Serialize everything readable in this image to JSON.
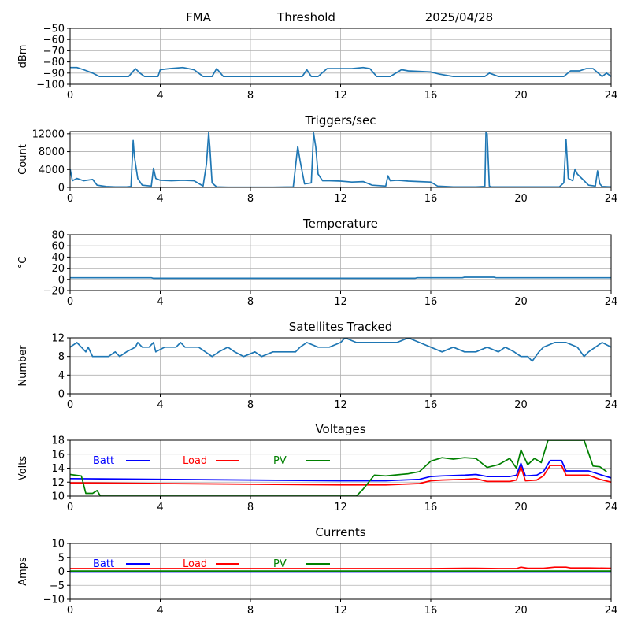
{
  "header": {
    "left": "FMA",
    "center": "Threshold",
    "right": "2025/04/28"
  },
  "chart_data": [
    {
      "id": "signal",
      "type": "line",
      "title": "",
      "xlabel": "",
      "ylabel": "dBm",
      "xlim": [
        0,
        24
      ],
      "ylim": [
        -100,
        -50
      ],
      "xticks": [
        0,
        4,
        8,
        12,
        16,
        20,
        24
      ],
      "yticks": [
        -100,
        -90,
        -80,
        -70,
        -60,
        -50
      ],
      "grid": true,
      "series": [
        {
          "color": "#1f77b4",
          "x": [
            0,
            0.3,
            0.6,
            1,
            1.3,
            2,
            2.6,
            2.9,
            3.1,
            3.3,
            3.6,
            3.9,
            4,
            4.4,
            5,
            5.5,
            5.9,
            6.3,
            6.5,
            6.8,
            7.2,
            8,
            9,
            10.3,
            10.5,
            10.7,
            11,
            11.4,
            12,
            12.5,
            13,
            13.3,
            13.6,
            14.2,
            14.7,
            15,
            16,
            16.4,
            17,
            18,
            18.4,
            18.6,
            19,
            20,
            21,
            21.9,
            22.2,
            22.6,
            22.9,
            23.2,
            23.6,
            23.8,
            24
          ],
          "y": [
            -85,
            -85,
            -87,
            -90,
            -93,
            -93,
            -93,
            -86,
            -90,
            -93,
            -93,
            -93,
            -87,
            -86,
            -85,
            -87,
            -93,
            -93,
            -86,
            -93,
            -93,
            -93,
            -93,
            -93,
            -87,
            -93,
            -93,
            -86,
            -86,
            -86,
            -85,
            -86,
            -93,
            -93,
            -87,
            -88,
            -89,
            -91,
            -93,
            -93,
            -93,
            -90,
            -93,
            -93,
            -93,
            -93,
            -88,
            -88,
            -86,
            -86,
            -93,
            -90,
            -93
          ]
        }
      ]
    },
    {
      "id": "triggers",
      "type": "line",
      "title": "Triggers/sec",
      "xlabel": "",
      "ylabel": "Count",
      "xlim": [
        0,
        24
      ],
      "ylim": [
        0,
        12500
      ],
      "xticks": [
        0,
        4,
        8,
        12,
        16,
        20,
        24
      ],
      "yticks": [
        0,
        4000,
        8000,
        12000
      ],
      "grid": true,
      "series": [
        {
          "color": "#1f77b4",
          "x": [
            0,
            0.1,
            0.3,
            0.6,
            1,
            1.2,
            1.6,
            2,
            2.5,
            2.7,
            2.8,
            2.85,
            3,
            3.2,
            3.6,
            3.7,
            3.8,
            4,
            4.5,
            5,
            5.5,
            5.9,
            6.05,
            6.15,
            6.2,
            6.3,
            6.5,
            7,
            8,
            9,
            9.9,
            10.1,
            10.2,
            10.4,
            10.7,
            10.8,
            10.9,
            11,
            11.2,
            11.5,
            12,
            12.5,
            13,
            13.4,
            14,
            14.1,
            14.2,
            14.5,
            15,
            15.5,
            16,
            16.3,
            17,
            18,
            18.4,
            18.45,
            18.5,
            18.6,
            18.7,
            19,
            20,
            21,
            21.7,
            21.9,
            22,
            22.1,
            22.3,
            22.4,
            22.5,
            22.8,
            23,
            23.3,
            23.4,
            23.5,
            23.6,
            24
          ],
          "y": [
            4200,
            1500,
            2000,
            1500,
            1800,
            500,
            200,
            100,
            100,
            200,
            10500,
            7000,
            2000,
            500,
            300,
            4300,
            2000,
            1600,
            1500,
            1600,
            1500,
            300,
            5300,
            12300,
            9000,
            1000,
            100,
            50,
            50,
            50,
            100,
            9200,
            6000,
            800,
            1000,
            12200,
            9000,
            3000,
            1500,
            1500,
            1400,
            1200,
            1300,
            500,
            300,
            2600,
            1500,
            1600,
            1400,
            1300,
            1200,
            300,
            100,
            100,
            200,
            12400,
            12000,
            300,
            100,
            100,
            100,
            100,
            100,
            1000,
            10700,
            2000,
            1500,
            4100,
            3000,
            1500,
            500,
            300,
            3700,
            800,
            200,
            100
          ]
        }
      ]
    },
    {
      "id": "temperature",
      "type": "line",
      "title": "Temperature",
      "xlabel": "",
      "ylabel": "°C",
      "xlim": [
        0,
        24
      ],
      "ylim": [
        -20,
        80
      ],
      "xticks": [
        0,
        4,
        8,
        12,
        16,
        20,
        24
      ],
      "yticks": [
        -20,
        0,
        20,
        40,
        60,
        80
      ],
      "grid": true,
      "series": [
        {
          "color": "#1f77b4",
          "x": [
            0,
            3.6,
            3.7,
            15.3,
            15.4,
            17.4,
            17.5,
            18.8,
            18.9,
            24
          ],
          "y": [
            3,
            3,
            2,
            2,
            3,
            3,
            4,
            4,
            3,
            3
          ]
        }
      ]
    },
    {
      "id": "satellites",
      "type": "line",
      "title": "Satellites Tracked",
      "xlabel": "",
      "ylabel": "Number",
      "xlim": [
        0,
        24
      ],
      "ylim": [
        0,
        12
      ],
      "xticks": [
        0,
        4,
        8,
        12,
        16,
        20,
        24
      ],
      "yticks": [
        0,
        4,
        8,
        12
      ],
      "grid": true,
      "series": [
        {
          "color": "#1f77b4",
          "x": [
            0,
            0.3,
            0.5,
            0.7,
            0.8,
            1,
            1.7,
            2,
            2.2,
            2.5,
            2.9,
            3,
            3.2,
            3.5,
            3.7,
            3.8,
            4.2,
            4.7,
            4.9,
            5.1,
            5.7,
            6,
            6.3,
            6.6,
            7,
            7.3,
            7.7,
            8.2,
            8.5,
            9,
            9.5,
            10,
            10.2,
            10.5,
            11,
            11.5,
            12,
            12.2,
            12.7,
            13,
            13.5,
            14.5,
            15,
            15.5,
            16,
            16.5,
            17,
            17.5,
            18,
            18.5,
            19,
            19.3,
            19.7,
            20,
            20.3,
            20.5,
            20.8,
            21,
            21.5,
            22,
            22.5,
            22.8,
            23,
            23.3,
            23.6,
            24
          ],
          "y": [
            10,
            11,
            10,
            9,
            10,
            8,
            8,
            9,
            8,
            9,
            10,
            11,
            10,
            10,
            11,
            9,
            10,
            10,
            11,
            10,
            10,
            9,
            8,
            9,
            10,
            9,
            8,
            9,
            8,
            9,
            9,
            9,
            10,
            11,
            10,
            10,
            11,
            12,
            11,
            11,
            11,
            11,
            12,
            11,
            10,
            9,
            10,
            9,
            9,
            10,
            9,
            10,
            9,
            8,
            8,
            7,
            9,
            10,
            11,
            11,
            10,
            8,
            9,
            10,
            11,
            10
          ]
        }
      ]
    },
    {
      "id": "voltages",
      "type": "line",
      "title": "Voltages",
      "xlabel": "",
      "ylabel": "Volts",
      "xlim": [
        0,
        24
      ],
      "ylim": [
        10,
        18
      ],
      "xticks": [
        0,
        4,
        8,
        12,
        16,
        20,
        24
      ],
      "yticks": [
        10,
        12,
        14,
        16,
        18
      ],
      "grid": true,
      "series": [
        {
          "name": "Batt",
          "color": "#0000ff",
          "x": [
            0,
            4,
            8,
            12,
            14,
            15.5,
            16,
            16.5,
            17.5,
            18,
            18.5,
            19.5,
            19.8,
            20,
            20.2,
            20.7,
            21,
            21.3,
            21.8,
            22,
            23,
            23.5,
            24
          ],
          "y": [
            12.5,
            12.4,
            12.3,
            12.2,
            12.2,
            12.4,
            12.8,
            12.9,
            13,
            13.1,
            12.8,
            12.8,
            13,
            14.7,
            12.9,
            13,
            13.5,
            15.1,
            15.1,
            13.6,
            13.6,
            13.1,
            12.6
          ]
        },
        {
          "name": "Load",
          "color": "#ff0000",
          "x": [
            0,
            4,
            8,
            12,
            14,
            15.5,
            16,
            16.5,
            17.5,
            18,
            18.5,
            19.5,
            19.8,
            20,
            20.2,
            20.7,
            21,
            21.3,
            21.8,
            22,
            23,
            23.5,
            24
          ],
          "y": [
            11.9,
            11.8,
            11.7,
            11.6,
            11.6,
            11.8,
            12.2,
            12.3,
            12.4,
            12.5,
            12.1,
            12.1,
            12.3,
            14.2,
            12.2,
            12.3,
            12.9,
            14.4,
            14.4,
            13,
            13,
            12.4,
            12
          ]
        },
        {
          "name": "PV",
          "color": "#008000",
          "x": [
            0,
            0.5,
            0.7,
            1,
            1.2,
            1.35,
            12.7,
            13,
            13.5,
            14,
            15,
            15.5,
            16,
            16.5,
            17,
            17.5,
            18,
            18.5,
            19,
            19.5,
            19.8,
            20,
            20.3,
            20.6,
            20.9,
            21.2,
            22.8,
            23.2,
            23.5,
            23.8
          ],
          "y": [
            13.1,
            12.9,
            10.4,
            10.4,
            10.8,
            10,
            10,
            11,
            13,
            12.9,
            13.2,
            13.5,
            15,
            15.5,
            15.3,
            15.5,
            15.4,
            14.1,
            14.5,
            15.4,
            14,
            16.6,
            14.5,
            15.4,
            14.8,
            18,
            18,
            14.3,
            14.2,
            13.5
          ]
        }
      ],
      "legend": {
        "placement": "top-left",
        "entries": [
          "Batt",
          "Load",
          "PV"
        ]
      }
    },
    {
      "id": "currents",
      "type": "line",
      "title": "Currents",
      "xlabel": "",
      "ylabel": "Amps",
      "xlim": [
        0,
        24
      ],
      "ylim": [
        -10,
        10
      ],
      "xticks": [
        0,
        4,
        8,
        12,
        16,
        20,
        24
      ],
      "yticks": [
        -10,
        -5,
        0,
        5,
        10
      ],
      "grid": true,
      "series": [
        {
          "name": "Batt",
          "color": "#0000ff",
          "x": [
            0,
            24
          ],
          "y": [
            0,
            0
          ]
        },
        {
          "name": "Load",
          "color": "#ff0000",
          "x": [
            0,
            12,
            16,
            17.5,
            18,
            19,
            19.8,
            20,
            20.3,
            21,
            21.5,
            22,
            22.2,
            23,
            24
          ],
          "y": [
            1,
            1,
            1,
            1.1,
            1.1,
            1,
            1,
            1.5,
            1.1,
            1.1,
            1.5,
            1.5,
            1.2,
            1.2,
            1.1
          ]
        },
        {
          "name": "PV",
          "color": "#008000",
          "x": [
            0,
            24
          ],
          "y": [
            0.1,
            0.1
          ]
        }
      ],
      "legend": {
        "placement": "top-left",
        "entries": [
          "Batt",
          "Load",
          "PV"
        ]
      }
    }
  ]
}
